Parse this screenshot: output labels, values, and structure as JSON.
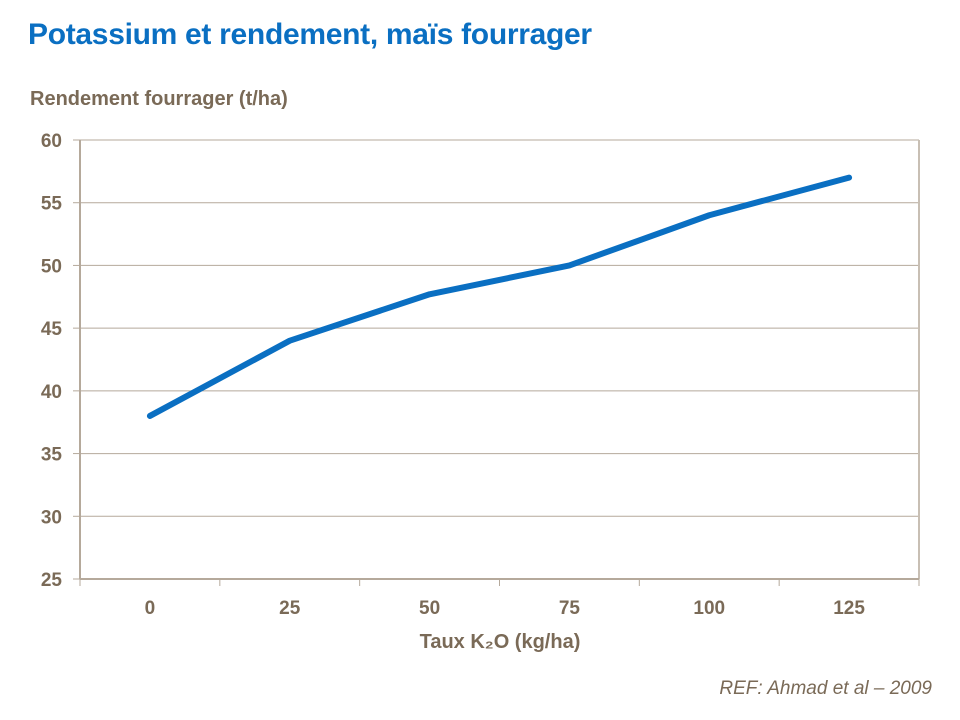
{
  "title": "Potassium et rendement, maïs fourrager",
  "reference": "REF:  Ahmad et al – 2009",
  "chart_data": {
    "type": "line",
    "ylabel": "Rendement fourrager (t/ha)",
    "xlabel": "Taux K₂O (kg/ha)",
    "categories": [
      "0",
      "25",
      "50",
      "75",
      "100",
      "125"
    ],
    "series": [
      {
        "values": [
          38,
          44,
          47.7,
          50,
          54,
          57
        ],
        "color": "#0a6fc2"
      }
    ],
    "ylim": [
      25,
      60
    ],
    "yticks": [
      25,
      30,
      35,
      40,
      45,
      50,
      55,
      60
    ],
    "grid": true,
    "legend": "none"
  }
}
